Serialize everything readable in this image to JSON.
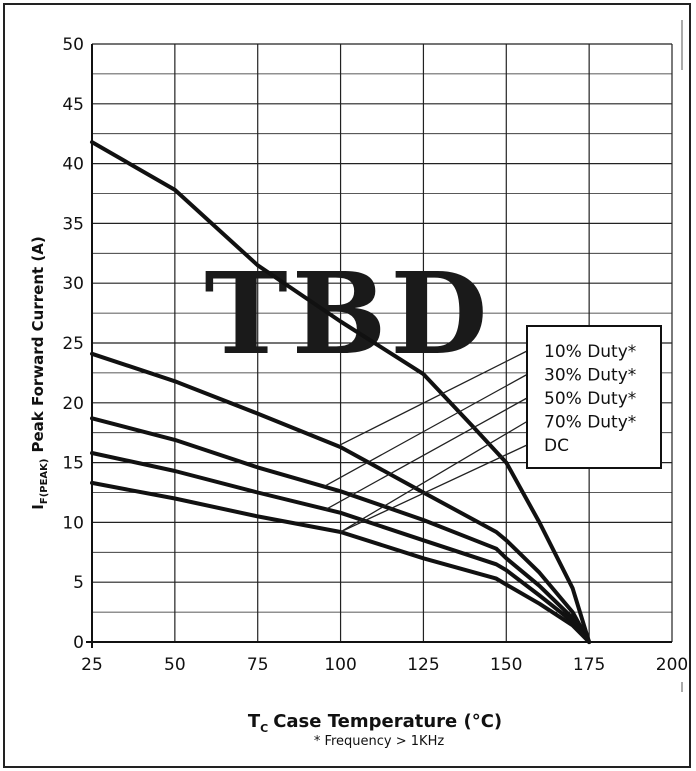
{
  "chart_data": {
    "type": "line",
    "watermark": "TBD",
    "xlabel": "Case Temperature (°C)",
    "xlabel_symbol": "T",
    "xlabel_sub": "C",
    "ylabel": "Peak Forward Current (A)",
    "ylabel_symbol": "I",
    "ylabel_sub": "F(PEAK)",
    "footnote": "* Frequency > 1KHz",
    "xlim": [
      25,
      200
    ],
    "ylim": [
      0,
      50
    ],
    "x_ticks": [
      "25",
      "50",
      "75",
      "100",
      "125",
      "150",
      "175",
      "200"
    ],
    "y_ticks": [
      "0",
      "5",
      "10",
      "15",
      "20",
      "25",
      "30",
      "35",
      "40",
      "45",
      "50"
    ],
    "grid": true,
    "legend_position": "right",
    "series": [
      {
        "name": "10% Duty*",
        "x": [
          25,
          50,
          75,
          100,
          125,
          140,
          150,
          160,
          170,
          175
        ],
        "y": [
          41.8,
          37.8,
          31.5,
          26.8,
          22.4,
          18.0,
          15.0,
          10.0,
          4.5,
          0
        ]
      },
      {
        "name": "30% Duty*",
        "x": [
          25,
          50,
          75,
          100,
          125,
          147,
          150,
          160,
          170,
          175
        ],
        "y": [
          24.1,
          21.8,
          19.1,
          16.3,
          12.5,
          9.2,
          8.5,
          5.8,
          2.5,
          0
        ]
      },
      {
        "name": "50% Duty*",
        "x": [
          25,
          50,
          75,
          100,
          125,
          147,
          150,
          160,
          170,
          175
        ],
        "y": [
          18.7,
          16.9,
          14.6,
          12.6,
          10.2,
          7.8,
          7.0,
          4.7,
          2.0,
          0
        ]
      },
      {
        "name": "70% Duty*",
        "x": [
          25,
          50,
          75,
          100,
          125,
          147,
          150,
          160,
          170,
          175
        ],
        "y": [
          15.8,
          14.3,
          12.5,
          10.8,
          8.5,
          6.5,
          6.0,
          3.9,
          1.7,
          0
        ]
      },
      {
        "name": "DC",
        "x": [
          25,
          50,
          75,
          100,
          125,
          147,
          150,
          160,
          170,
          175
        ],
        "y": [
          13.3,
          12.0,
          10.5,
          9.2,
          7.0,
          5.3,
          4.8,
          3.2,
          1.4,
          0
        ]
      }
    ],
    "legend_leaders": [
      {
        "series": "10% Duty*",
        "from": [
          100,
          16.5
        ]
      },
      {
        "series": "30% Duty*",
        "from": [
          95,
          13.0
        ]
      },
      {
        "series": "50% Duty*",
        "from": [
          95,
          11.0
        ]
      },
      {
        "series": "70% Duty*",
        "from": [
          100,
          9.2
        ]
      },
      {
        "series": "DC",
        "from": [
          100,
          9.2
        ]
      }
    ]
  }
}
